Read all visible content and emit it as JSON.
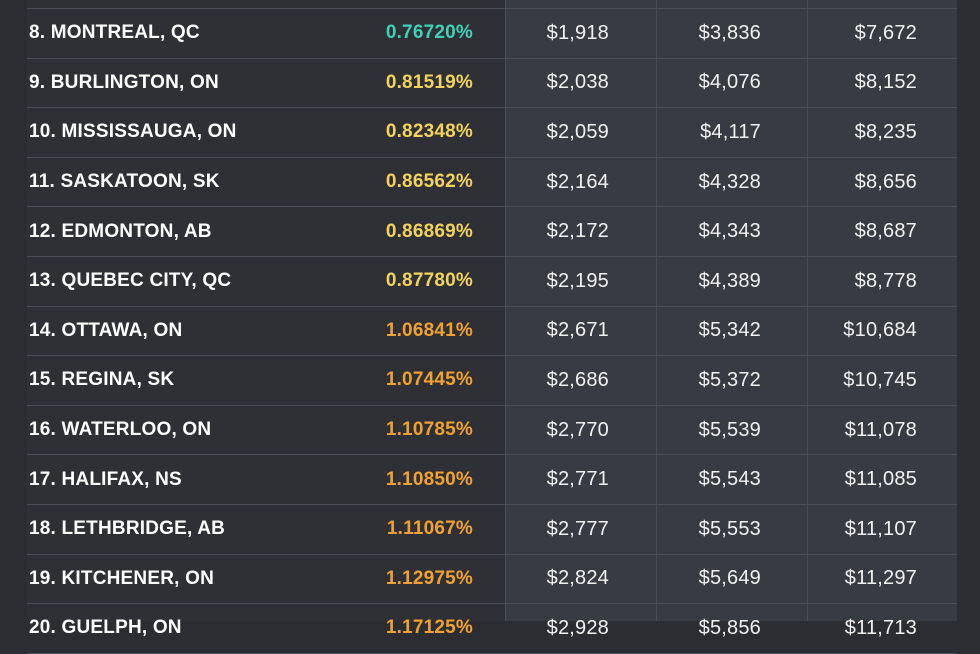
{
  "chart_data": {
    "type": "table",
    "columns": [
      "",
      "",
      "",
      "",
      ""
    ],
    "colors": {
      "teal": "#3fd1b6",
      "yellow": "#f3d35a",
      "orange": "#f2a22c"
    },
    "rows": [
      {
        "city": "8. MONTREAL, QC",
        "rate": "0.76720%",
        "color": "#3fd1b6",
        "v1": "$1,918",
        "v2": "$3,836",
        "v3": "$7,672"
      },
      {
        "city": "9. BURLINGTON, ON",
        "rate": "0.81519%",
        "color": "#f3d35a",
        "v1": "$2,038",
        "v2": "$4,076",
        "v3": "$8,152"
      },
      {
        "city": "10. MISSISSAUGA, ON",
        "rate": "0.82348%",
        "color": "#f3d35a",
        "v1": "$2,059",
        "v2": "$4,117",
        "v3": "$8,235"
      },
      {
        "city": "11. SASKATOON, SK",
        "rate": "0.86562%",
        "color": "#f3d35a",
        "v1": "$2,164",
        "v2": "$4,328",
        "v3": "$8,656"
      },
      {
        "city": "12. EDMONTON, AB",
        "rate": "0.86869%",
        "color": "#f3d35a",
        "v1": "$2,172",
        "v2": "$4,343",
        "v3": "$8,687"
      },
      {
        "city": "13. QUEBEC CITY, QC",
        "rate": "0.87780%",
        "color": "#f3d35a",
        "v1": "$2,195",
        "v2": "$4,389",
        "v3": "$8,778"
      },
      {
        "city": "14. OTTAWA, ON",
        "rate": "1.06841%",
        "color": "#f2a22c",
        "v1": "$2,671",
        "v2": "$5,342",
        "v3": "$10,684"
      },
      {
        "city": "15. REGINA, SK",
        "rate": "1.07445%",
        "color": "#f2a22c",
        "v1": "$2,686",
        "v2": "$5,372",
        "v3": "$10,745"
      },
      {
        "city": "16. WATERLOO, ON",
        "rate": "1.10785%",
        "color": "#f2a22c",
        "v1": "$2,770",
        "v2": "$5,539",
        "v3": "$11,078"
      },
      {
        "city": "17. HALIFAX, NS",
        "rate": "1.10850%",
        "color": "#f2a22c",
        "v1": "$2,771",
        "v2": "$5,543",
        "v3": "$11,085"
      },
      {
        "city": "18. LETHBRIDGE, AB",
        "rate": "1.11067%",
        "color": "#f2a22c",
        "v1": "$2,777",
        "v2": "$5,553",
        "v3": "$11,107"
      },
      {
        "city": "19. KITCHENER, ON",
        "rate": "1.12975%",
        "color": "#f2a22c",
        "v1": "$2,824",
        "v2": "$5,649",
        "v3": "$11,297"
      },
      {
        "city": "20. GUELPH, ON",
        "rate": "1.17125%",
        "color": "#f2a22c",
        "v1": "$2,928",
        "v2": "$5,856",
        "v3": "$11,713"
      }
    ]
  }
}
